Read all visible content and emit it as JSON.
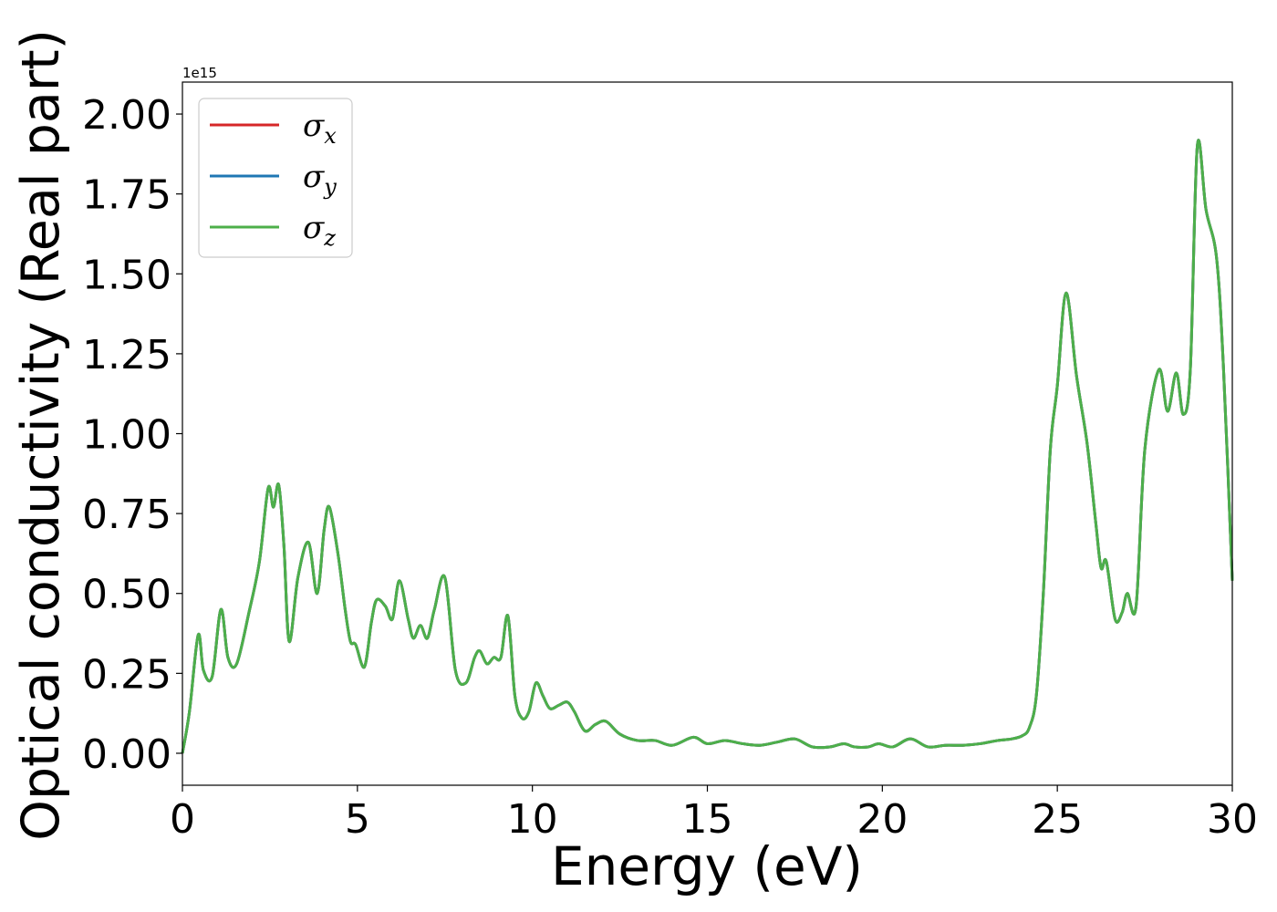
{
  "chart_data": {
    "type": "line",
    "xlabel": "Energy (eV)",
    "ylabel": "Optical conductivity (Real part)",
    "y_offset_label": "1e15",
    "xlim": [
      0,
      30
    ],
    "ylim": [
      -0.1,
      2.1
    ],
    "y_scale_factor": 1000000000000000.0,
    "xticks": [
      0,
      5,
      10,
      15,
      20,
      25,
      30
    ],
    "xtick_labels": [
      "0",
      "5",
      "10",
      "15",
      "20",
      "25",
      "30"
    ],
    "yticks": [
      0.0,
      0.25,
      0.5,
      0.75,
      1.0,
      1.25,
      1.5,
      1.75,
      2.0
    ],
    "ytick_labels": [
      "0.00",
      "0.25",
      "0.50",
      "0.75",
      "1.00",
      "1.25",
      "1.50",
      "1.75",
      "2.00"
    ],
    "grid": false,
    "legend_position": "upper-left",
    "x": [
      0,
      0.2,
      0.45,
      0.6,
      0.85,
      1.1,
      1.3,
      1.55,
      1.9,
      2.2,
      2.45,
      2.6,
      2.75,
      2.9,
      3.05,
      3.3,
      3.6,
      3.85,
      4.05,
      4.2,
      4.45,
      4.65,
      4.8,
      4.95,
      5.2,
      5.4,
      5.55,
      5.8,
      6.0,
      6.2,
      6.45,
      6.6,
      6.8,
      7.0,
      7.2,
      7.5,
      7.8,
      8.1,
      8.35,
      8.5,
      8.7,
      8.9,
      9.1,
      9.3,
      9.5,
      9.7,
      9.9,
      10.1,
      10.3,
      10.5,
      10.75,
      11.0,
      11.2,
      11.5,
      11.8,
      12.1,
      12.5,
      13.0,
      13.5,
      14.0,
      14.6,
      15.0,
      15.5,
      16.0,
      16.5,
      17.0,
      17.5,
      18.0,
      18.5,
      18.9,
      19.2,
      19.6,
      19.9,
      20.3,
      20.8,
      21.3,
      21.8,
      22.3,
      22.8,
      23.3,
      23.7,
      24.0,
      24.2,
      24.4,
      24.6,
      24.8,
      25.0,
      25.25,
      25.55,
      25.85,
      26.1,
      26.25,
      26.4,
      26.65,
      26.85,
      27.0,
      27.25,
      27.5,
      27.9,
      28.15,
      28.4,
      28.6,
      28.8,
      29.0,
      29.25,
      29.55,
      29.75,
      30.0
    ],
    "series": [
      {
        "name": "σx",
        "base": "σ",
        "sub": "x",
        "color": "#d62728",
        "values": [
          0.0,
          0.13,
          0.37,
          0.26,
          0.24,
          0.45,
          0.3,
          0.28,
          0.44,
          0.6,
          0.83,
          0.77,
          0.84,
          0.65,
          0.35,
          0.55,
          0.66,
          0.5,
          0.7,
          0.77,
          0.62,
          0.45,
          0.35,
          0.34,
          0.27,
          0.41,
          0.48,
          0.46,
          0.42,
          0.54,
          0.42,
          0.36,
          0.4,
          0.36,
          0.45,
          0.55,
          0.26,
          0.22,
          0.3,
          0.32,
          0.28,
          0.3,
          0.3,
          0.43,
          0.18,
          0.11,
          0.13,
          0.22,
          0.18,
          0.14,
          0.15,
          0.16,
          0.13,
          0.07,
          0.09,
          0.1,
          0.06,
          0.04,
          0.04,
          0.025,
          0.05,
          0.03,
          0.04,
          0.03,
          0.025,
          0.035,
          0.045,
          0.02,
          0.02,
          0.03,
          0.02,
          0.02,
          0.03,
          0.02,
          0.045,
          0.02,
          0.025,
          0.025,
          0.03,
          0.04,
          0.045,
          0.055,
          0.08,
          0.18,
          0.5,
          0.95,
          1.15,
          1.44,
          1.18,
          0.97,
          0.72,
          0.58,
          0.6,
          0.42,
          0.44,
          0.5,
          0.46,
          0.95,
          1.2,
          1.07,
          1.19,
          1.06,
          1.2,
          1.9,
          1.7,
          1.55,
          1.2,
          0.54
        ]
      },
      {
        "name": "σy",
        "base": "σ",
        "sub": "y",
        "color": "#1f77b4",
        "values": [
          0.0,
          0.13,
          0.37,
          0.26,
          0.24,
          0.45,
          0.3,
          0.28,
          0.44,
          0.6,
          0.83,
          0.77,
          0.84,
          0.65,
          0.35,
          0.55,
          0.66,
          0.5,
          0.7,
          0.77,
          0.62,
          0.45,
          0.35,
          0.34,
          0.27,
          0.41,
          0.48,
          0.46,
          0.42,
          0.54,
          0.42,
          0.36,
          0.4,
          0.36,
          0.45,
          0.55,
          0.26,
          0.22,
          0.3,
          0.32,
          0.28,
          0.3,
          0.3,
          0.43,
          0.18,
          0.11,
          0.13,
          0.22,
          0.18,
          0.14,
          0.15,
          0.16,
          0.13,
          0.07,
          0.09,
          0.1,
          0.06,
          0.04,
          0.04,
          0.025,
          0.05,
          0.03,
          0.04,
          0.03,
          0.025,
          0.035,
          0.045,
          0.02,
          0.02,
          0.03,
          0.02,
          0.02,
          0.03,
          0.02,
          0.045,
          0.02,
          0.025,
          0.025,
          0.03,
          0.04,
          0.045,
          0.055,
          0.08,
          0.18,
          0.5,
          0.95,
          1.15,
          1.44,
          1.18,
          0.97,
          0.72,
          0.58,
          0.6,
          0.42,
          0.44,
          0.5,
          0.46,
          0.95,
          1.2,
          1.07,
          1.19,
          1.06,
          1.2,
          1.9,
          1.7,
          1.55,
          1.2,
          0.54
        ]
      },
      {
        "name": "σz",
        "base": "σ",
        "sub": "z",
        "color": "#4daf4a",
        "values": [
          0.0,
          0.13,
          0.37,
          0.26,
          0.24,
          0.45,
          0.3,
          0.28,
          0.44,
          0.6,
          0.83,
          0.77,
          0.84,
          0.65,
          0.35,
          0.55,
          0.66,
          0.5,
          0.7,
          0.77,
          0.62,
          0.45,
          0.35,
          0.34,
          0.27,
          0.41,
          0.48,
          0.46,
          0.42,
          0.54,
          0.42,
          0.36,
          0.4,
          0.36,
          0.45,
          0.55,
          0.26,
          0.22,
          0.3,
          0.32,
          0.28,
          0.3,
          0.3,
          0.43,
          0.18,
          0.11,
          0.13,
          0.22,
          0.18,
          0.14,
          0.15,
          0.16,
          0.13,
          0.07,
          0.09,
          0.1,
          0.06,
          0.04,
          0.04,
          0.025,
          0.05,
          0.03,
          0.04,
          0.03,
          0.025,
          0.035,
          0.045,
          0.02,
          0.02,
          0.03,
          0.02,
          0.02,
          0.03,
          0.02,
          0.045,
          0.02,
          0.025,
          0.025,
          0.03,
          0.04,
          0.045,
          0.055,
          0.08,
          0.18,
          0.5,
          0.95,
          1.15,
          1.44,
          1.18,
          0.97,
          0.72,
          0.58,
          0.6,
          0.42,
          0.44,
          0.5,
          0.46,
          0.95,
          1.2,
          1.07,
          1.19,
          1.06,
          1.2,
          1.9,
          1.7,
          1.55,
          1.2,
          0.54
        ]
      }
    ]
  }
}
